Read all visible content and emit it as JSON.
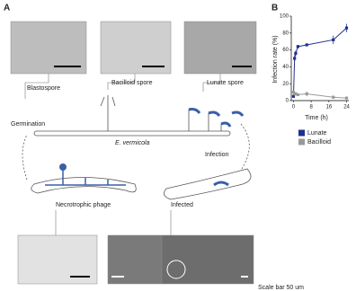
{
  "figure": {
    "panel_a": "A",
    "panel_b": "B",
    "blastospore": "Blastospore",
    "bacilloid_spore": "Bacilloid spore",
    "lunate_spore": "Lunate spore",
    "germination": "Germination",
    "species": "E. vermicola",
    "infection": "Infection",
    "necrotrophic": "Necrotrophic phage",
    "infected": "Infected",
    "scale_bar": "Scale bar 50 um"
  },
  "chart_data": {
    "type": "line",
    "ylabel": "Infection rate (%)",
    "xlabel": "Time (h)",
    "x": [
      0,
      0.5,
      1,
      2,
      6,
      18,
      24
    ],
    "series": [
      {
        "name": "Lunate",
        "color": "#1f2f8f",
        "values": [
          5,
          50,
          56,
          64,
          66,
          72,
          86
        ],
        "errors": [
          1,
          4,
          3,
          2,
          1,
          5,
          5
        ]
      },
      {
        "name": "Bacilloid",
        "color": "#9a9a9a",
        "values": [
          10,
          8,
          8,
          7,
          8,
          4,
          3
        ],
        "errors": [
          2,
          2,
          2,
          1,
          3,
          2,
          1
        ]
      }
    ],
    "xlim": [
      -1,
      25
    ],
    "ylim": [
      0,
      100
    ],
    "xticks": [
      0,
      8,
      16,
      24
    ],
    "yticks": [
      0,
      20,
      40,
      60,
      80,
      100
    ],
    "legend": "bottom"
  }
}
